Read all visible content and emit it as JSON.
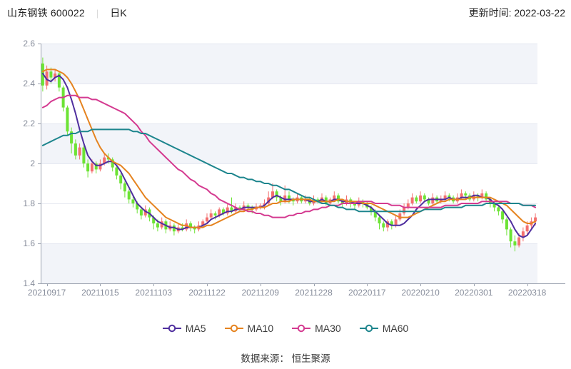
{
  "header": {
    "stock_title": "山东钢铁 600022",
    "separator": "|",
    "period_label": "日K",
    "update_time_label": "更新时间: 2022-03-22"
  },
  "footer": {
    "source_label": "数据来源： 恒生聚源"
  },
  "chart_data": {
    "type": "candlestick",
    "title": "",
    "xlabel": "",
    "ylabel": "",
    "legend_position": "bottom",
    "grid": true,
    "y_axis": {
      "min": 1.4,
      "max": 2.6,
      "tick_step": 0.2,
      "tick_labels": [
        "2.6",
        "2.4",
        "2.2",
        "2",
        "1.8",
        "1.6",
        "1.4"
      ]
    },
    "x_tick_labels": [
      "20210917",
      "20211015",
      "20211103",
      "20211122",
      "20211209",
      "20211228",
      "20220117",
      "20220210",
      "20220301",
      "20220318"
    ],
    "x_tick_indices": [
      1,
      14,
      27,
      40,
      53,
      66,
      79,
      92,
      105,
      118
    ],
    "colors": {
      "up": "#f37070",
      "down": "#6ce334",
      "band": "#f2f4f9",
      "grid": "#e4e7f0",
      "axis": "#9ca3b0",
      "tick_label": "#878d9b"
    },
    "candles_ohlc": [
      [
        2.5,
        2.53,
        2.36,
        2.39
      ],
      [
        2.39,
        2.49,
        2.37,
        2.46
      ],
      [
        2.46,
        2.48,
        2.4,
        2.43
      ],
      [
        2.43,
        2.47,
        2.41,
        2.45
      ],
      [
        2.45,
        2.46,
        2.36,
        2.38
      ],
      [
        2.38,
        2.39,
        2.26,
        2.28
      ],
      [
        2.28,
        2.29,
        2.14,
        2.16
      ],
      [
        2.16,
        2.18,
        2.05,
        2.1
      ],
      [
        2.1,
        2.12,
        2.02,
        2.04
      ],
      [
        2.04,
        2.1,
        2.02,
        2.08
      ],
      [
        2.08,
        2.09,
        1.98,
        2.0
      ],
      [
        2.0,
        2.02,
        1.93,
        1.96
      ],
      [
        1.96,
        2.02,
        1.95,
        2.0
      ],
      [
        2.0,
        2.01,
        1.95,
        1.97
      ],
      [
        1.97,
        2.02,
        1.96,
        2.0
      ],
      [
        2.0,
        2.05,
        1.99,
        2.03
      ],
      [
        2.03,
        2.05,
        2.0,
        2.02
      ],
      [
        2.02,
        2.03,
        1.96,
        1.98
      ],
      [
        1.98,
        1.99,
        1.92,
        1.94
      ],
      [
        1.94,
        1.95,
        1.87,
        1.9
      ],
      [
        1.9,
        1.91,
        1.83,
        1.86
      ],
      [
        1.86,
        1.87,
        1.8,
        1.82
      ],
      [
        1.82,
        1.84,
        1.78,
        1.8
      ],
      [
        1.8,
        1.81,
        1.75,
        1.77
      ],
      [
        1.77,
        1.78,
        1.72,
        1.74
      ],
      [
        1.74,
        1.79,
        1.73,
        1.77
      ],
      [
        1.77,
        1.78,
        1.71,
        1.73
      ],
      [
        1.73,
        1.74,
        1.67,
        1.7
      ],
      [
        1.7,
        1.72,
        1.66,
        1.68
      ],
      [
        1.68,
        1.73,
        1.67,
        1.71
      ],
      [
        1.71,
        1.72,
        1.65,
        1.67
      ],
      [
        1.67,
        1.71,
        1.66,
        1.69
      ],
      [
        1.69,
        1.7,
        1.64,
        1.66
      ],
      [
        1.66,
        1.7,
        1.65,
        1.68
      ],
      [
        1.68,
        1.7,
        1.66,
        1.67
      ],
      [
        1.67,
        1.72,
        1.66,
        1.7
      ],
      [
        1.7,
        1.71,
        1.66,
        1.68
      ],
      [
        1.68,
        1.69,
        1.65,
        1.67
      ],
      [
        1.67,
        1.71,
        1.66,
        1.69
      ],
      [
        1.69,
        1.72,
        1.68,
        1.71
      ],
      [
        1.71,
        1.75,
        1.7,
        1.73
      ],
      [
        1.73,
        1.77,
        1.72,
        1.75
      ],
      [
        1.75,
        1.76,
        1.72,
        1.74
      ],
      [
        1.74,
        1.78,
        1.73,
        1.77
      ],
      [
        1.77,
        1.78,
        1.74,
        1.75
      ],
      [
        1.75,
        1.8,
        1.74,
        1.78
      ],
      [
        1.78,
        1.83,
        1.75,
        1.76
      ],
      [
        1.76,
        1.8,
        1.75,
        1.78
      ],
      [
        1.78,
        1.79,
        1.76,
        1.77
      ],
      [
        1.77,
        1.81,
        1.76,
        1.79
      ],
      [
        1.79,
        1.8,
        1.76,
        1.78
      ],
      [
        1.78,
        1.79,
        1.75,
        1.77
      ],
      [
        1.77,
        1.8,
        1.76,
        1.78
      ],
      [
        1.78,
        1.8,
        1.77,
        1.79
      ],
      [
        1.79,
        1.82,
        1.77,
        1.8
      ],
      [
        1.8,
        1.86,
        1.79,
        1.83
      ],
      [
        1.83,
        1.9,
        1.82,
        1.86
      ],
      [
        1.86,
        1.87,
        1.81,
        1.83
      ],
      [
        1.83,
        1.84,
        1.79,
        1.81
      ],
      [
        1.81,
        1.89,
        1.8,
        1.84
      ],
      [
        1.84,
        1.86,
        1.8,
        1.82
      ],
      [
        1.82,
        1.83,
        1.79,
        1.81
      ],
      [
        1.81,
        1.85,
        1.8,
        1.83
      ],
      [
        1.83,
        1.84,
        1.8,
        1.81
      ],
      [
        1.81,
        1.84,
        1.8,
        1.82
      ],
      [
        1.82,
        1.83,
        1.79,
        1.8
      ],
      [
        1.8,
        1.84,
        1.79,
        1.82
      ],
      [
        1.82,
        1.83,
        1.8,
        1.81
      ],
      [
        1.81,
        1.85,
        1.8,
        1.83
      ],
      [
        1.83,
        1.84,
        1.79,
        1.8
      ],
      [
        1.8,
        1.83,
        1.79,
        1.82
      ],
      [
        1.82,
        1.86,
        1.81,
        1.84
      ],
      [
        1.84,
        1.85,
        1.8,
        1.81
      ],
      [
        1.81,
        1.82,
        1.78,
        1.8
      ],
      [
        1.8,
        1.84,
        1.79,
        1.82
      ],
      [
        1.82,
        1.83,
        1.78,
        1.8
      ],
      [
        1.8,
        1.81,
        1.77,
        1.79
      ],
      [
        1.79,
        1.83,
        1.78,
        1.81
      ],
      [
        1.81,
        1.82,
        1.78,
        1.8
      ],
      [
        1.8,
        1.81,
        1.77,
        1.78
      ],
      [
        1.78,
        1.79,
        1.74,
        1.76
      ],
      [
        1.76,
        1.77,
        1.71,
        1.73
      ],
      [
        1.73,
        1.74,
        1.67,
        1.7
      ],
      [
        1.7,
        1.71,
        1.66,
        1.68
      ],
      [
        1.68,
        1.72,
        1.66,
        1.71
      ],
      [
        1.71,
        1.72,
        1.67,
        1.69
      ],
      [
        1.69,
        1.74,
        1.68,
        1.72
      ],
      [
        1.72,
        1.77,
        1.71,
        1.75
      ],
      [
        1.75,
        1.8,
        1.74,
        1.78
      ],
      [
        1.78,
        1.82,
        1.77,
        1.8
      ],
      [
        1.8,
        1.85,
        1.79,
        1.83
      ],
      [
        1.83,
        1.84,
        1.8,
        1.81
      ],
      [
        1.81,
        1.86,
        1.8,
        1.84
      ],
      [
        1.84,
        1.85,
        1.81,
        1.82
      ],
      [
        1.82,
        1.83,
        1.79,
        1.8
      ],
      [
        1.8,
        1.85,
        1.79,
        1.83
      ],
      [
        1.83,
        1.84,
        1.8,
        1.81
      ],
      [
        1.81,
        1.84,
        1.8,
        1.82
      ],
      [
        1.82,
        1.86,
        1.81,
        1.84
      ],
      [
        1.84,
        1.85,
        1.81,
        1.83
      ],
      [
        1.83,
        1.84,
        1.8,
        1.81
      ],
      [
        1.81,
        1.85,
        1.8,
        1.83
      ],
      [
        1.83,
        1.87,
        1.82,
        1.85
      ],
      [
        1.85,
        1.86,
        1.82,
        1.84
      ],
      [
        1.84,
        1.85,
        1.81,
        1.82
      ],
      [
        1.82,
        1.86,
        1.81,
        1.84
      ],
      [
        1.84,
        1.85,
        1.81,
        1.83
      ],
      [
        1.83,
        1.87,
        1.82,
        1.85
      ],
      [
        1.85,
        1.86,
        1.81,
        1.82
      ],
      [
        1.82,
        1.83,
        1.78,
        1.8
      ],
      [
        1.8,
        1.81,
        1.76,
        1.78
      ],
      [
        1.78,
        1.79,
        1.74,
        1.76
      ],
      [
        1.76,
        1.77,
        1.7,
        1.72
      ],
      [
        1.72,
        1.73,
        1.64,
        1.67
      ],
      [
        1.67,
        1.68,
        1.58,
        1.61
      ],
      [
        1.61,
        1.64,
        1.56,
        1.59
      ],
      [
        1.59,
        1.65,
        1.58,
        1.63
      ],
      [
        1.63,
        1.68,
        1.61,
        1.66
      ],
      [
        1.66,
        1.71,
        1.64,
        1.69
      ],
      [
        1.69,
        1.73,
        1.67,
        1.71
      ],
      [
        1.71,
        1.75,
        1.69,
        1.73
      ]
    ],
    "ma_series": [
      {
        "name": "MA5",
        "color": "#4f2e9e",
        "values": [
          2.45,
          2.42,
          2.41,
          2.43,
          2.44,
          2.42,
          2.38,
          2.32,
          2.25,
          2.17,
          2.1,
          2.04,
          2.01,
          1.99,
          1.99,
          2.0,
          2.01,
          2.01,
          1.99,
          1.96,
          1.92,
          1.88,
          1.84,
          1.8,
          1.78,
          1.76,
          1.75,
          1.73,
          1.71,
          1.7,
          1.69,
          1.68,
          1.68,
          1.67,
          1.67,
          1.68,
          1.68,
          1.68,
          1.68,
          1.69,
          1.7,
          1.72,
          1.73,
          1.74,
          1.75,
          1.76,
          1.76,
          1.77,
          1.77,
          1.78,
          1.78,
          1.78,
          1.78,
          1.78,
          1.79,
          1.81,
          1.83,
          1.84,
          1.83,
          1.82,
          1.82,
          1.82,
          1.82,
          1.82,
          1.82,
          1.81,
          1.81,
          1.81,
          1.82,
          1.81,
          1.81,
          1.82,
          1.82,
          1.81,
          1.81,
          1.81,
          1.8,
          1.8,
          1.8,
          1.79,
          1.78,
          1.76,
          1.74,
          1.72,
          1.7,
          1.69,
          1.69,
          1.69,
          1.7,
          1.72,
          1.74,
          1.77,
          1.79,
          1.81,
          1.82,
          1.82,
          1.82,
          1.82,
          1.82,
          1.83,
          1.82,
          1.82,
          1.83,
          1.83,
          1.83,
          1.84,
          1.84,
          1.83,
          1.83,
          1.82,
          1.8,
          1.79,
          1.77,
          1.74,
          1.71,
          1.67,
          1.64,
          1.63,
          1.64,
          1.67,
          1.7
        ]
      },
      {
        "name": "MA10",
        "color": "#e5831f",
        "values": [
          2.46,
          2.47,
          2.47,
          2.47,
          2.46,
          2.45,
          2.43,
          2.4,
          2.36,
          2.32,
          2.27,
          2.22,
          2.17,
          2.12,
          2.08,
          2.05,
          2.03,
          2.01,
          2.0,
          1.99,
          1.97,
          1.95,
          1.92,
          1.89,
          1.86,
          1.83,
          1.81,
          1.79,
          1.77,
          1.75,
          1.73,
          1.72,
          1.71,
          1.7,
          1.69,
          1.69,
          1.68,
          1.68,
          1.68,
          1.68,
          1.69,
          1.69,
          1.7,
          1.71,
          1.72,
          1.73,
          1.74,
          1.75,
          1.76,
          1.76,
          1.77,
          1.77,
          1.78,
          1.78,
          1.78,
          1.79,
          1.8,
          1.8,
          1.81,
          1.81,
          1.81,
          1.82,
          1.82,
          1.82,
          1.82,
          1.82,
          1.81,
          1.81,
          1.81,
          1.81,
          1.81,
          1.81,
          1.82,
          1.82,
          1.81,
          1.81,
          1.81,
          1.81,
          1.8,
          1.8,
          1.8,
          1.79,
          1.78,
          1.77,
          1.76,
          1.75,
          1.74,
          1.73,
          1.73,
          1.73,
          1.74,
          1.75,
          1.76,
          1.77,
          1.78,
          1.79,
          1.8,
          1.81,
          1.81,
          1.82,
          1.82,
          1.82,
          1.82,
          1.82,
          1.83,
          1.83,
          1.83,
          1.83,
          1.83,
          1.83,
          1.82,
          1.81,
          1.8,
          1.79,
          1.77,
          1.75,
          1.73,
          1.71,
          1.7,
          1.7,
          1.71
        ]
      },
      {
        "name": "MA30",
        "color": "#d43a90",
        "values": [
          2.28,
          2.29,
          2.31,
          2.32,
          2.33,
          2.33,
          2.34,
          2.34,
          2.34,
          2.33,
          2.33,
          2.33,
          2.32,
          2.32,
          2.31,
          2.3,
          2.29,
          2.28,
          2.27,
          2.26,
          2.25,
          2.23,
          2.21,
          2.19,
          2.16,
          2.14,
          2.11,
          2.09,
          2.07,
          2.05,
          2.03,
          2.01,
          1.99,
          1.97,
          1.96,
          1.94,
          1.92,
          1.91,
          1.89,
          1.88,
          1.87,
          1.85,
          1.84,
          1.82,
          1.81,
          1.8,
          1.79,
          1.78,
          1.77,
          1.77,
          1.76,
          1.76,
          1.75,
          1.75,
          1.74,
          1.74,
          1.73,
          1.73,
          1.73,
          1.73,
          1.74,
          1.74,
          1.75,
          1.75,
          1.76,
          1.76,
          1.77,
          1.77,
          1.78,
          1.78,
          1.79,
          1.79,
          1.79,
          1.8,
          1.8,
          1.8,
          1.8,
          1.81,
          1.81,
          1.81,
          1.81,
          1.8,
          1.8,
          1.8,
          1.8,
          1.79,
          1.79,
          1.79,
          1.78,
          1.78,
          1.78,
          1.78,
          1.78,
          1.78,
          1.78,
          1.78,
          1.78,
          1.78,
          1.79,
          1.79,
          1.79,
          1.79,
          1.8,
          1.8,
          1.8,
          1.8,
          1.8,
          1.81,
          1.81,
          1.81,
          1.81,
          1.81,
          1.81,
          1.81,
          1.8,
          1.8,
          1.8,
          1.79,
          1.79,
          1.79,
          1.78
        ]
      },
      {
        "name": "MA60",
        "color": "#1d858d",
        "values": [
          2.09,
          2.1,
          2.11,
          2.12,
          2.13,
          2.14,
          2.14,
          2.15,
          2.15,
          2.16,
          2.16,
          2.16,
          2.17,
          2.17,
          2.17,
          2.17,
          2.17,
          2.17,
          2.17,
          2.17,
          2.17,
          2.17,
          2.16,
          2.16,
          2.15,
          2.15,
          2.14,
          2.13,
          2.12,
          2.11,
          2.1,
          2.09,
          2.08,
          2.07,
          2.06,
          2.05,
          2.04,
          2.03,
          2.02,
          2.01,
          2.0,
          1.99,
          1.98,
          1.97,
          1.96,
          1.95,
          1.95,
          1.94,
          1.93,
          1.93,
          1.92,
          1.92,
          1.91,
          1.91,
          1.9,
          1.9,
          1.89,
          1.89,
          1.88,
          1.87,
          1.87,
          1.86,
          1.85,
          1.84,
          1.83,
          1.83,
          1.82,
          1.81,
          1.8,
          1.8,
          1.79,
          1.79,
          1.78,
          1.78,
          1.77,
          1.77,
          1.77,
          1.76,
          1.76,
          1.76,
          1.76,
          1.76,
          1.76,
          1.76,
          1.76,
          1.76,
          1.76,
          1.76,
          1.76,
          1.76,
          1.76,
          1.76,
          1.76,
          1.77,
          1.77,
          1.77,
          1.77,
          1.77,
          1.78,
          1.78,
          1.78,
          1.78,
          1.78,
          1.79,
          1.79,
          1.79,
          1.79,
          1.79,
          1.8,
          1.8,
          1.8,
          1.8,
          1.8,
          1.8,
          1.8,
          1.8,
          1.8,
          1.79,
          1.79,
          1.79,
          1.79
        ]
      }
    ]
  }
}
